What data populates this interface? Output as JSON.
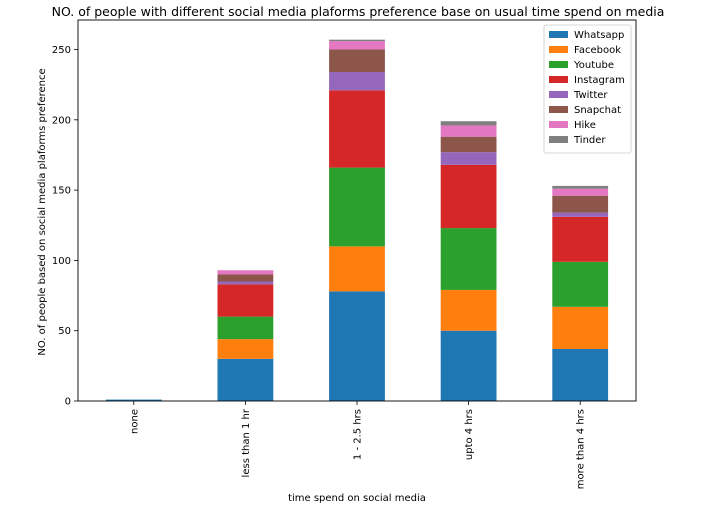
{
  "chart_data": {
    "type": "bar",
    "stacked": true,
    "title": "NO. of people with different social media plaforms preference base on usual time spend on media",
    "xlabel": "time spend on social media",
    "ylabel": "NO. of people based on social media plaforms preference",
    "ylim": [
      0,
      271
    ],
    "yticks": [
      0,
      50,
      100,
      150,
      200,
      250
    ],
    "categories": [
      "none",
      "less than 1 hr",
      "1 - 2.5 hrs",
      "upto 4 hrs",
      "more than 4 hrs"
    ],
    "legend_position": "top-right",
    "series": [
      {
        "name": "Whatsapp",
        "color": "#1f77b4",
        "values": [
          1,
          30,
          78,
          50,
          37
        ]
      },
      {
        "name": "Facebook",
        "color": "#ff7f0e",
        "values": [
          0,
          14,
          32,
          29,
          30
        ]
      },
      {
        "name": "Youtube",
        "color": "#2ca02c",
        "values": [
          0,
          16,
          56,
          44,
          32
        ]
      },
      {
        "name": "Instagram",
        "color": "#d62728",
        "values": [
          0,
          23,
          55,
          45,
          32
        ]
      },
      {
        "name": "Twitter",
        "color": "#9467bd",
        "values": [
          0,
          2,
          13,
          9,
          3
        ]
      },
      {
        "name": "Snapchat",
        "color": "#8c564b",
        "values": [
          0,
          5,
          16,
          11,
          12
        ]
      },
      {
        "name": "Hike",
        "color": "#e377c2",
        "values": [
          0,
          3,
          6,
          8,
          5
        ]
      },
      {
        "name": "Tinder",
        "color": "#7f7f7f",
        "values": [
          0,
          0,
          1,
          3,
          2
        ]
      }
    ]
  }
}
